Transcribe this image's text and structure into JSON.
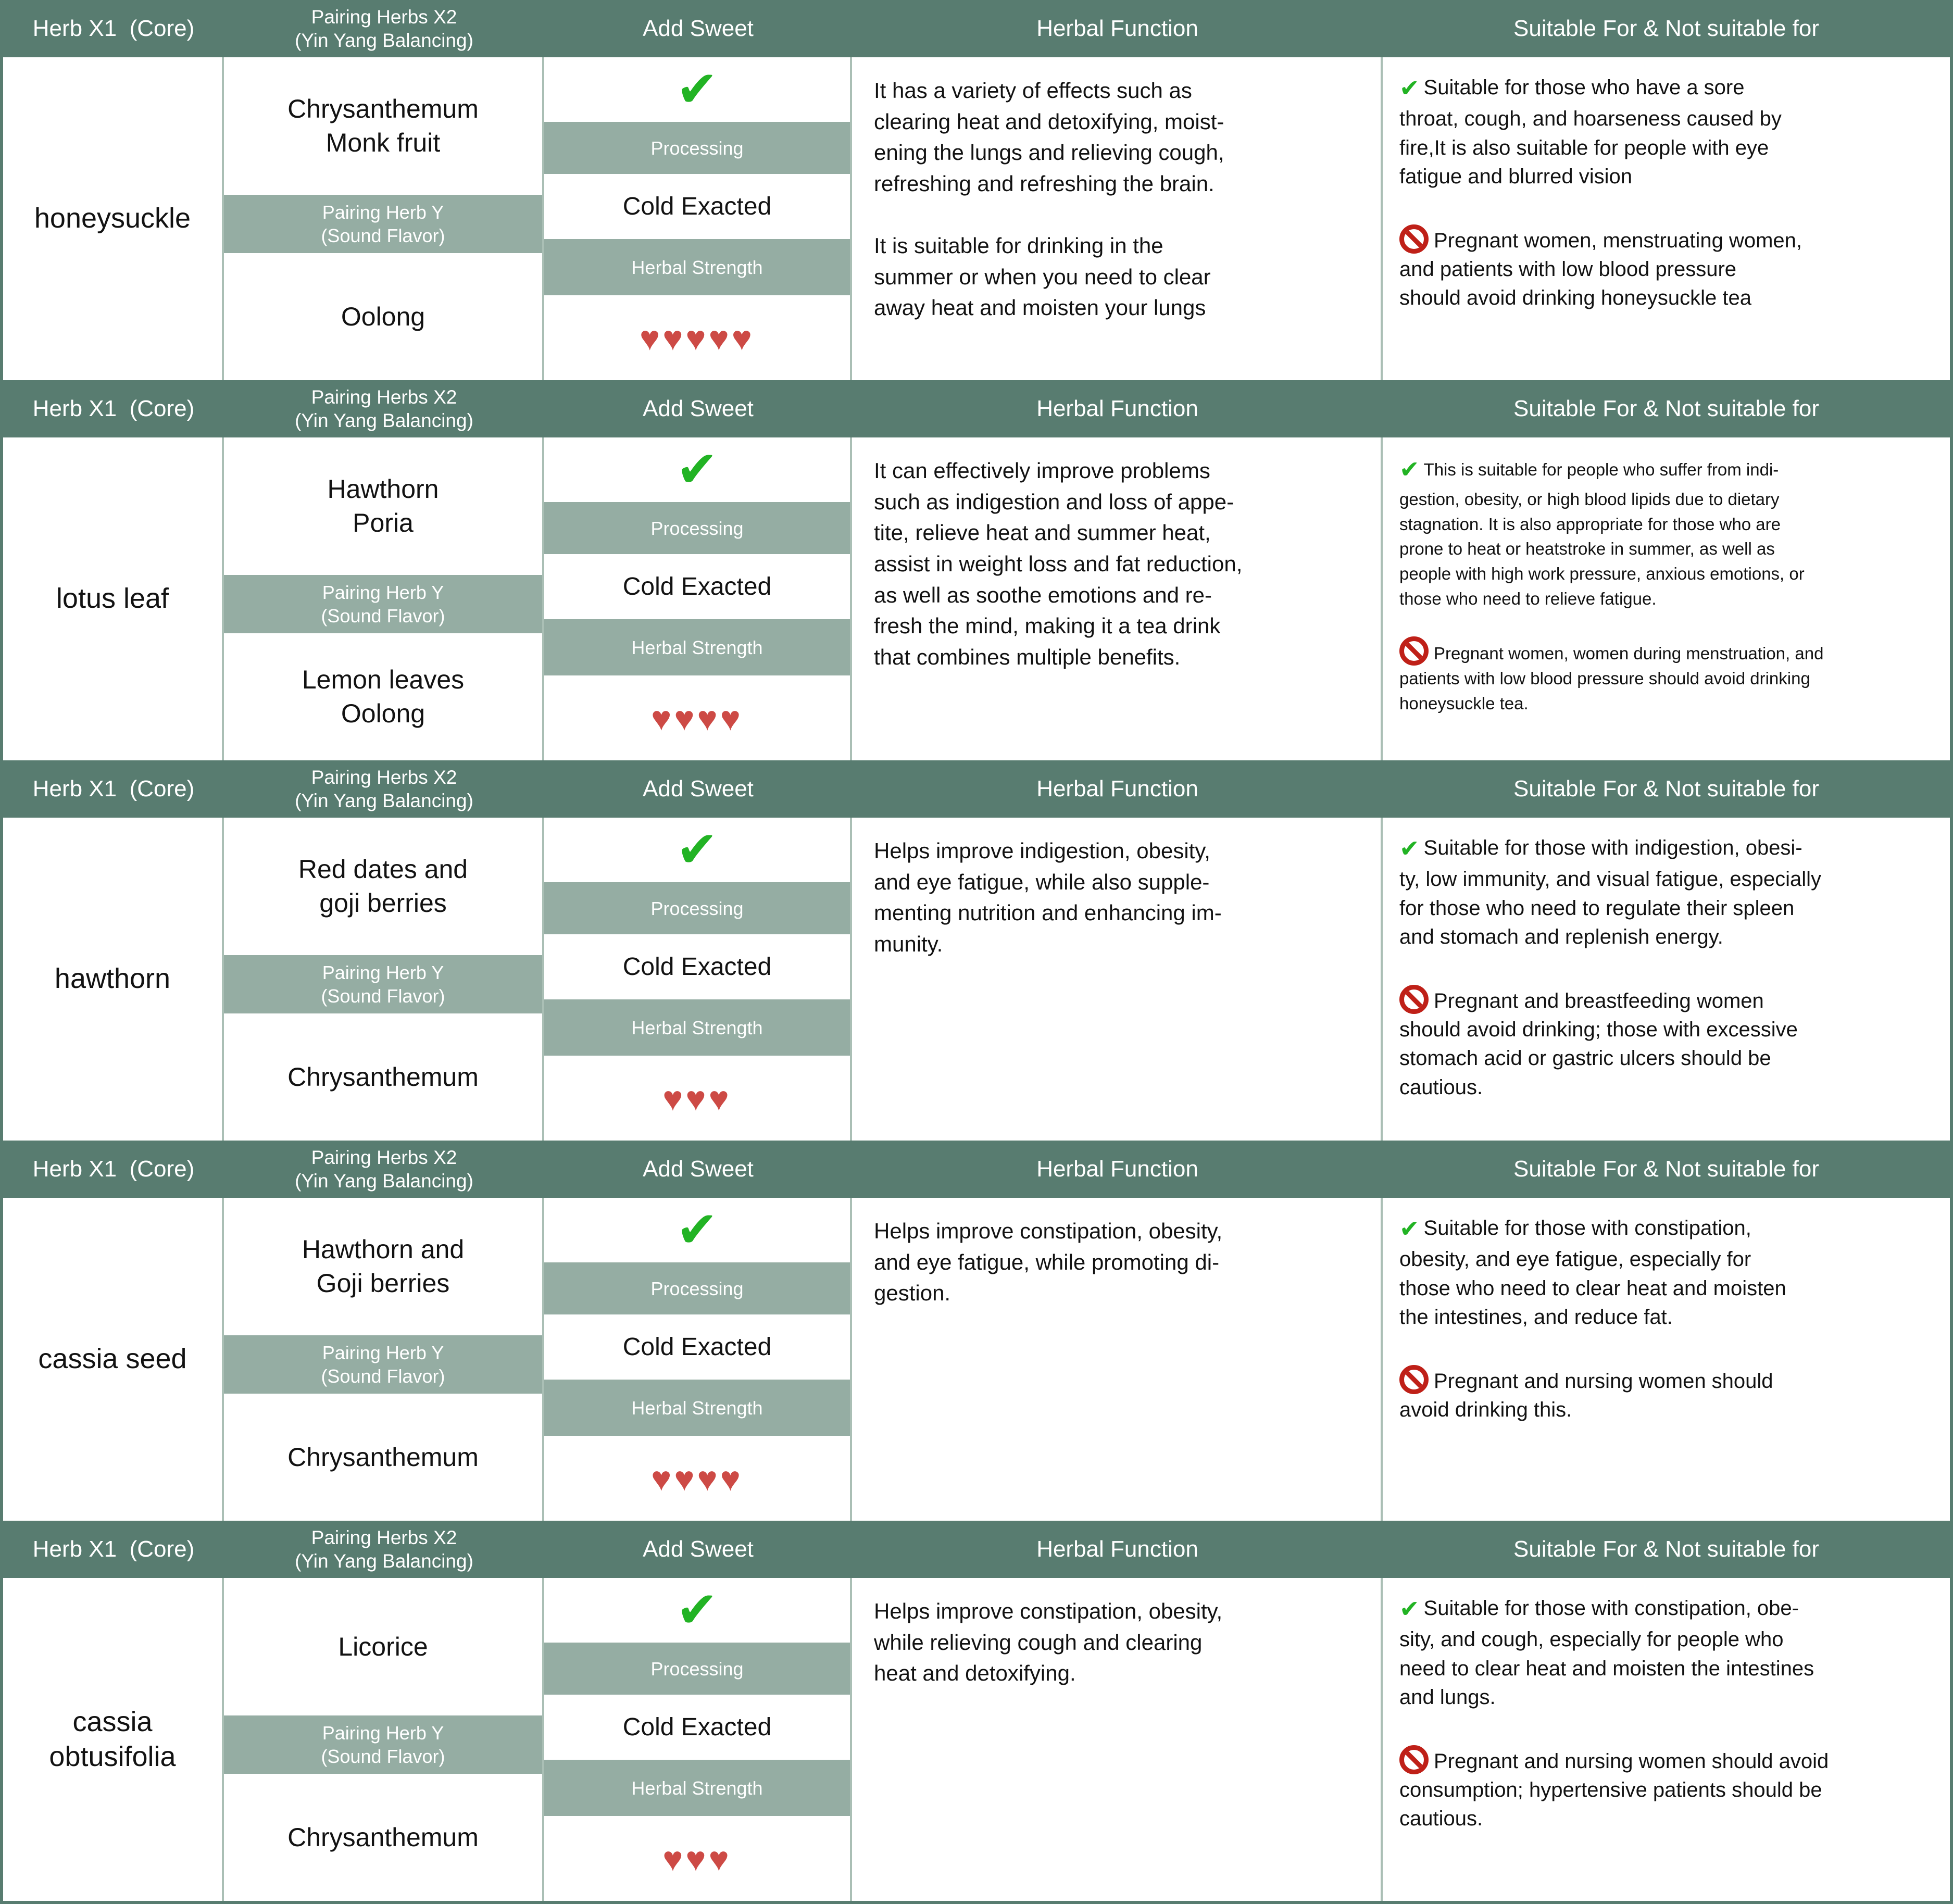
{
  "header": {
    "col1": "Herb X1  (Core)",
    "col2": "Pairing Herbs X2\n(Yin Yang Balancing)",
    "col3": "Add Sweet",
    "col4": "Herbal Function",
    "col5": "Suitable For & Not suitable for"
  },
  "labels": {
    "pairing_y": "Pairing Herb Y\n(Sound Flavor)",
    "processing": "Processing",
    "cold": "Cold Exacted",
    "strength": "Herbal Strength"
  },
  "icons": {
    "check": "✔",
    "heart": "♥"
  },
  "colors": {
    "header_bg": "#587c70",
    "band_bg": "#95ada3",
    "heart_red": "#cd4a45",
    "check_green": "#22b324",
    "prohibit_red": "#bf2018"
  },
  "sections": [
    {
      "herb": "honeysuckle",
      "pairing_herbs": "Chrysanthemum\nMonk fruit",
      "pairing_herb_y": "Oolong",
      "hearts": 5,
      "hearts_display": "♥♥♥♥♥",
      "function": "It has a variety of effects such as\nclearing heat and detoxifying, moist-\nening the lungs and relieving cough,\nrefreshing and refreshing the brain.\n\nIt is suitable for drinking in the\nsummer or when you need to clear\naway heat and moisten your lungs",
      "suitable": "Suitable for those who have a sore\nthroat, cough, and hoarseness caused by\nfire,It is also suitable for people with eye\nfatigue and blurred vision",
      "not_suitable": "Pregnant women, menstruating women,\nand patients with low blood pressure\nshould avoid drinking honeysuckle tea"
    },
    {
      "herb": "lotus leaf",
      "pairing_herbs": "Hawthorn\nPoria",
      "pairing_herb_y": "Lemon leaves\nOolong",
      "hearts": 4,
      "hearts_display": "♥♥♥♥",
      "function": "It can effectively improve problems\nsuch as indigestion and loss of appe-\ntite, relieve heat and summer heat,\nassist in weight loss and fat reduction,\nas well as soothe emotions and re-\nfresh the mind, making it a tea drink\nthat combines multiple benefits.",
      "suitable": "This is suitable for people who suffer from indi-\ngestion, obesity, or high blood lipids due to dietary\nstagnation. It is also appropriate for those who are\nprone to heat or heatstroke in summer, as well as\npeople with high work pressure, anxious emotions, or\nthose who need to relieve fatigue.",
      "not_suitable": "Pregnant women, women during menstruation, and\npatients with low blood pressure should avoid drinking\nhoneysuckle tea."
    },
    {
      "herb": "hawthorn",
      "pairing_herbs": "Red dates and\ngoji berries",
      "pairing_herb_y": "Chrysanthemum",
      "hearts": 3,
      "hearts_display": "♥♥♥",
      "function": "Helps improve indigestion, obesity,\nand eye fatigue, while also supple-\nmenting nutrition and enhancing im-\nmunity.",
      "suitable": "Suitable for those with indigestion, obesi-\nty, low immunity, and visual fatigue, especially\nfor those who need to regulate their spleen\nand stomach and replenish energy.",
      "not_suitable": "Pregnant and breastfeeding women\nshould avoid drinking; those with excessive\nstomach acid or gastric ulcers should be\ncautious."
    },
    {
      "herb": "cassia seed",
      "pairing_herbs": "Hawthorn and\nGoji berries",
      "pairing_herb_y": "Chrysanthemum",
      "hearts": 4,
      "hearts_display": "♥♥♥♥",
      "function": "Helps improve constipation, obesity,\nand eye fatigue, while promoting di-\ngestion.",
      "suitable": "Suitable for those with constipation,\nobesity, and eye fatigue, especially for\nthose who need to clear heat and moisten\nthe intestines, and reduce fat.",
      "not_suitable": "Pregnant and nursing women should\navoid drinking this."
    },
    {
      "herb": "cassia\nobtusifolia",
      "pairing_herbs": "Licorice",
      "pairing_herb_y": "Chrysanthemum",
      "hearts": 3,
      "hearts_display": "♥♥♥",
      "function": "Helps improve constipation, obesity,\nwhile relieving cough and clearing\nheat and detoxifying.",
      "suitable": "Suitable for those with constipation, obe-\nsity, and cough, especially for people who\nneed to clear heat and moisten the intestines\nand lungs.",
      "not_suitable": "Pregnant and nursing women should avoid\nconsumption; hypertensive patients should be\ncautious."
    }
  ]
}
